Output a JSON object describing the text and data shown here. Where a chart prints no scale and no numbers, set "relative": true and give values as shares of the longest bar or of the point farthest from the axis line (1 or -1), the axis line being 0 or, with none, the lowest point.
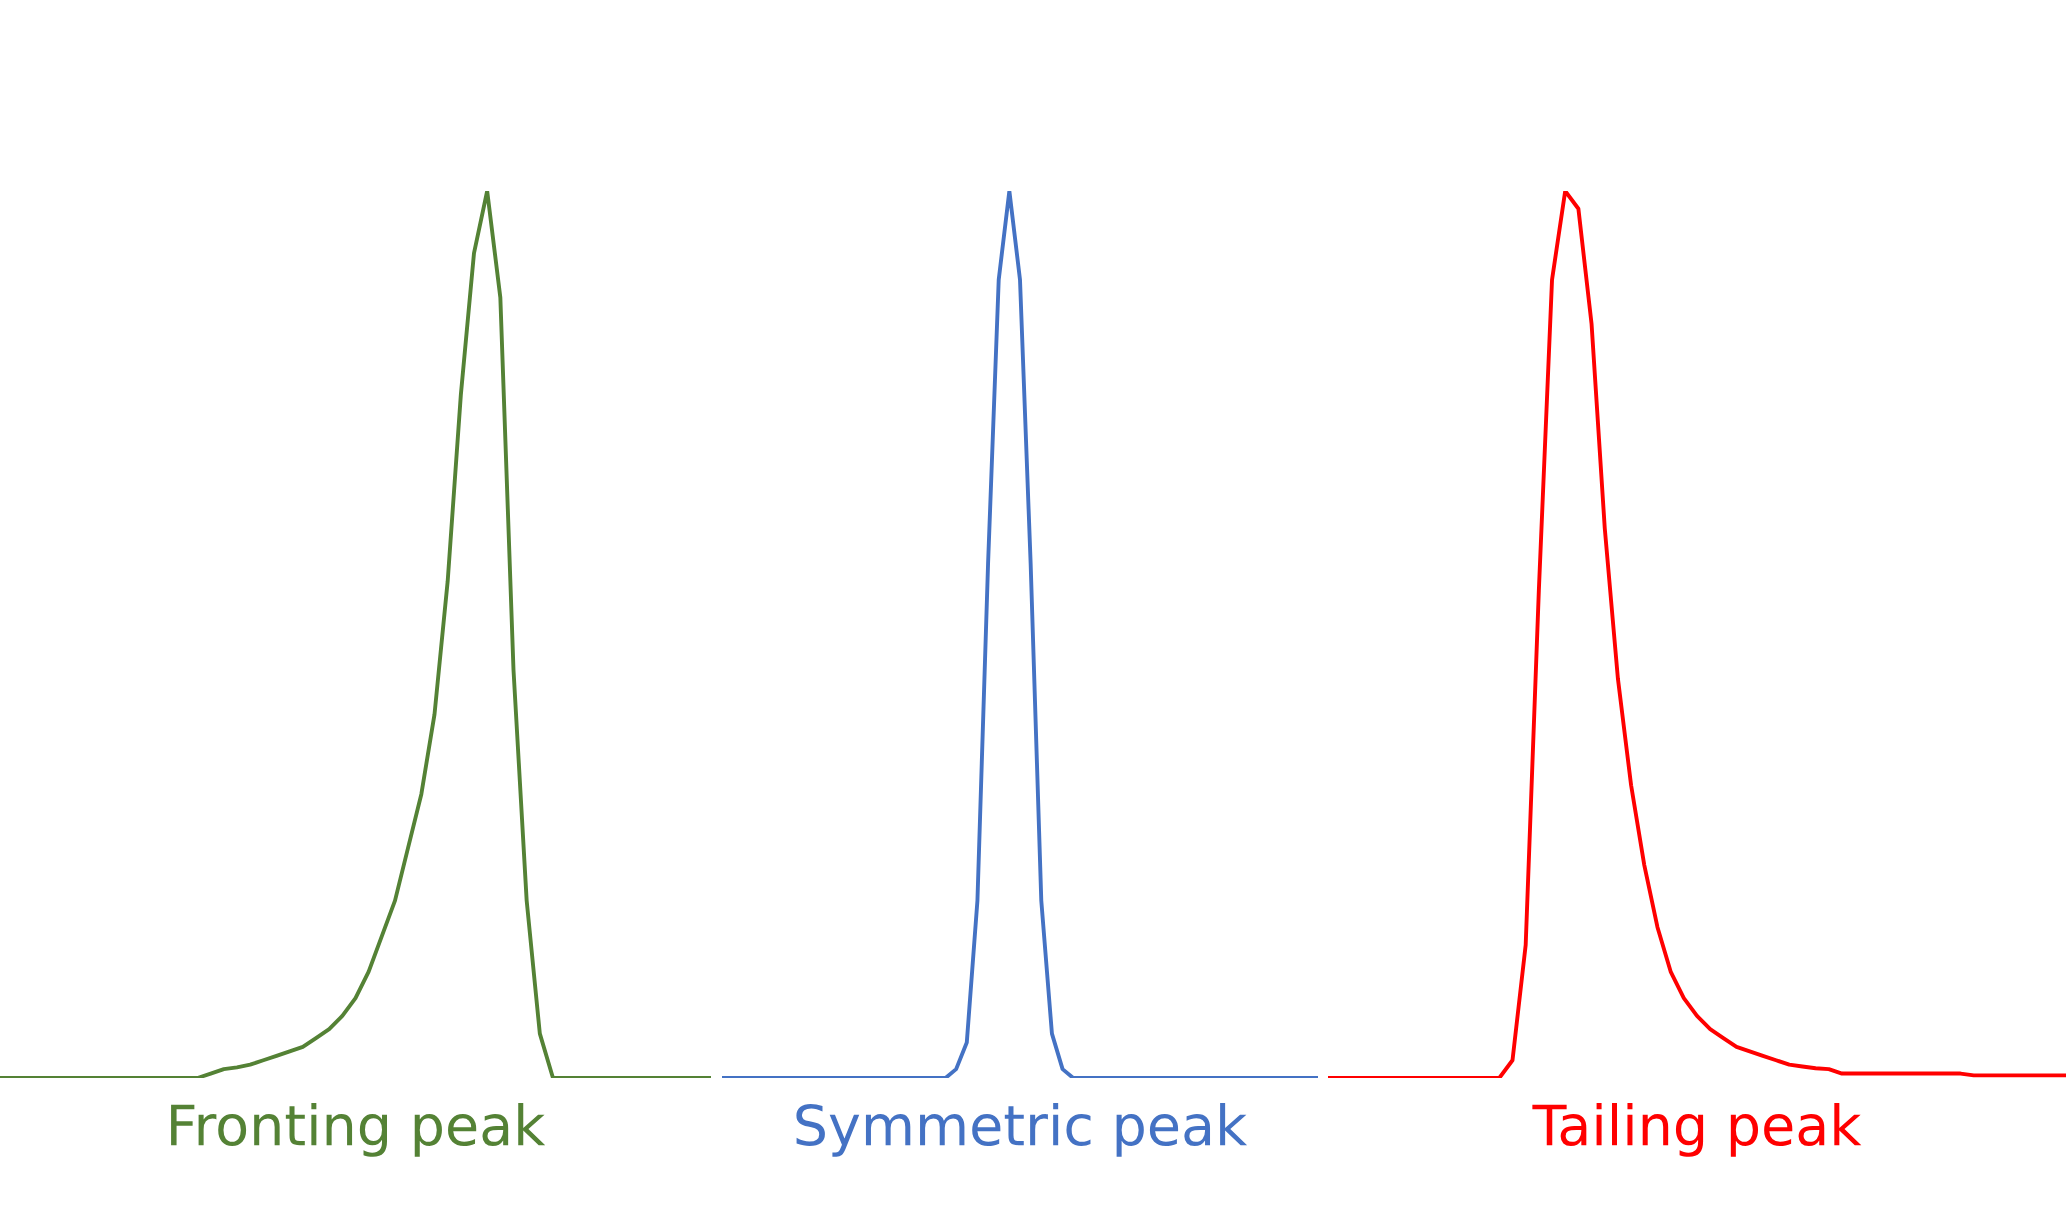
{
  "chart_data": [
    {
      "type": "line",
      "relative": true,
      "xlabel": "Fronting peak",
      "categories": [
        null,
        null,
        null,
        null,
        null,
        null,
        null,
        null,
        null,
        null,
        null,
        null,
        null,
        null,
        null,
        null,
        null,
        null,
        null,
        null,
        null,
        null,
        null,
        null,
        null,
        null,
        null,
        null,
        null,
        null,
        null,
        null,
        null,
        null,
        null,
        null,
        null,
        null,
        null,
        null,
        null,
        null,
        null,
        null,
        null,
        null,
        null,
        null,
        null,
        null,
        null,
        null,
        null,
        null,
        null
      ],
      "series": [
        {
          "color": "#548235",
          "values": [
            0,
            0,
            0,
            0,
            0,
            0,
            0,
            0,
            0,
            0,
            0,
            0,
            0,
            0,
            0,
            0,
            0.005,
            0.01,
            0.012,
            0.015,
            0.02,
            0.025,
            0.03,
            0.035,
            0.045,
            0.055,
            0.07,
            0.09,
            0.12,
            0.16,
            0.2,
            0.26,
            0.32,
            0.41,
            0.56,
            0.77,
            0.93,
            1.0,
            0.88,
            0.46,
            0.2,
            0.05,
            0,
            0,
            0,
            0,
            0,
            0,
            0,
            0,
            0,
            0,
            0,
            0,
            0
          ]
        }
      ]
    },
    {
      "type": "line",
      "relative": true,
      "xlabel": "Symmetric peak",
      "categories": [
        null,
        null,
        null,
        null,
        null,
        null,
        null,
        null,
        null,
        null,
        null,
        null,
        null,
        null,
        null,
        null,
        null,
        null,
        null,
        null,
        null,
        null,
        null,
        null,
        null,
        null,
        null,
        null,
        null,
        null,
        null,
        null,
        null,
        null,
        null,
        null,
        null,
        null,
        null,
        null,
        null,
        null,
        null,
        null,
        null,
        null,
        null,
        null,
        null,
        null,
        null,
        null,
        null,
        null,
        null,
        null,
        null
      ],
      "series": [
        {
          "color": "#4472c4",
          "values": [
            0,
            0,
            0,
            0,
            0,
            0,
            0,
            0,
            0,
            0,
            0,
            0,
            0,
            0,
            0,
            0,
            0,
            0,
            0,
            0,
            0,
            0,
            0.01,
            0.04,
            0.2,
            0.58,
            0.9,
            1.0,
            0.9,
            0.58,
            0.2,
            0.05,
            0.01,
            0,
            0,
            0,
            0,
            0,
            0,
            0,
            0,
            0,
            0,
            0,
            0,
            0,
            0,
            0,
            0,
            0,
            0,
            0,
            0,
            0,
            0,
            0,
            0
          ]
        }
      ]
    },
    {
      "type": "line",
      "relative": true,
      "xlabel": "Tailing peak",
      "categories": [
        null,
        null,
        null,
        null,
        null,
        null,
        null,
        null,
        null,
        null,
        null,
        null,
        null,
        null,
        null,
        null,
        null,
        null,
        null,
        null,
        null,
        null,
        null,
        null,
        null,
        null,
        null,
        null,
        null,
        null,
        null,
        null,
        null,
        null,
        null,
        null,
        null,
        null,
        null,
        null,
        null,
        null,
        null,
        null,
        null,
        null,
        null,
        null,
        null,
        null,
        null,
        null,
        null,
        null,
        null,
        null,
        null
      ],
      "series": [
        {
          "color": "#ff0000",
          "values": [
            0,
            0,
            0,
            0,
            0,
            0,
            0,
            0,
            0,
            0,
            0,
            0,
            0,
            0,
            0.02,
            0.15,
            0.55,
            0.9,
            1.0,
            0.98,
            0.85,
            0.62,
            0.45,
            0.33,
            0.24,
            0.17,
            0.12,
            0.09,
            0.07,
            0.055,
            0.045,
            0.035,
            0.03,
            0.025,
            0.02,
            0.015,
            0.013,
            0.011,
            0.01,
            0.005,
            0.005,
            0.005,
            0.005,
            0.005,
            0.005,
            0.005,
            0.005,
            0.005,
            0.005,
            0.003,
            0.003,
            0.003,
            0.003,
            0.003,
            0.003,
            0.003,
            0.003
          ]
        }
      ]
    }
  ]
}
